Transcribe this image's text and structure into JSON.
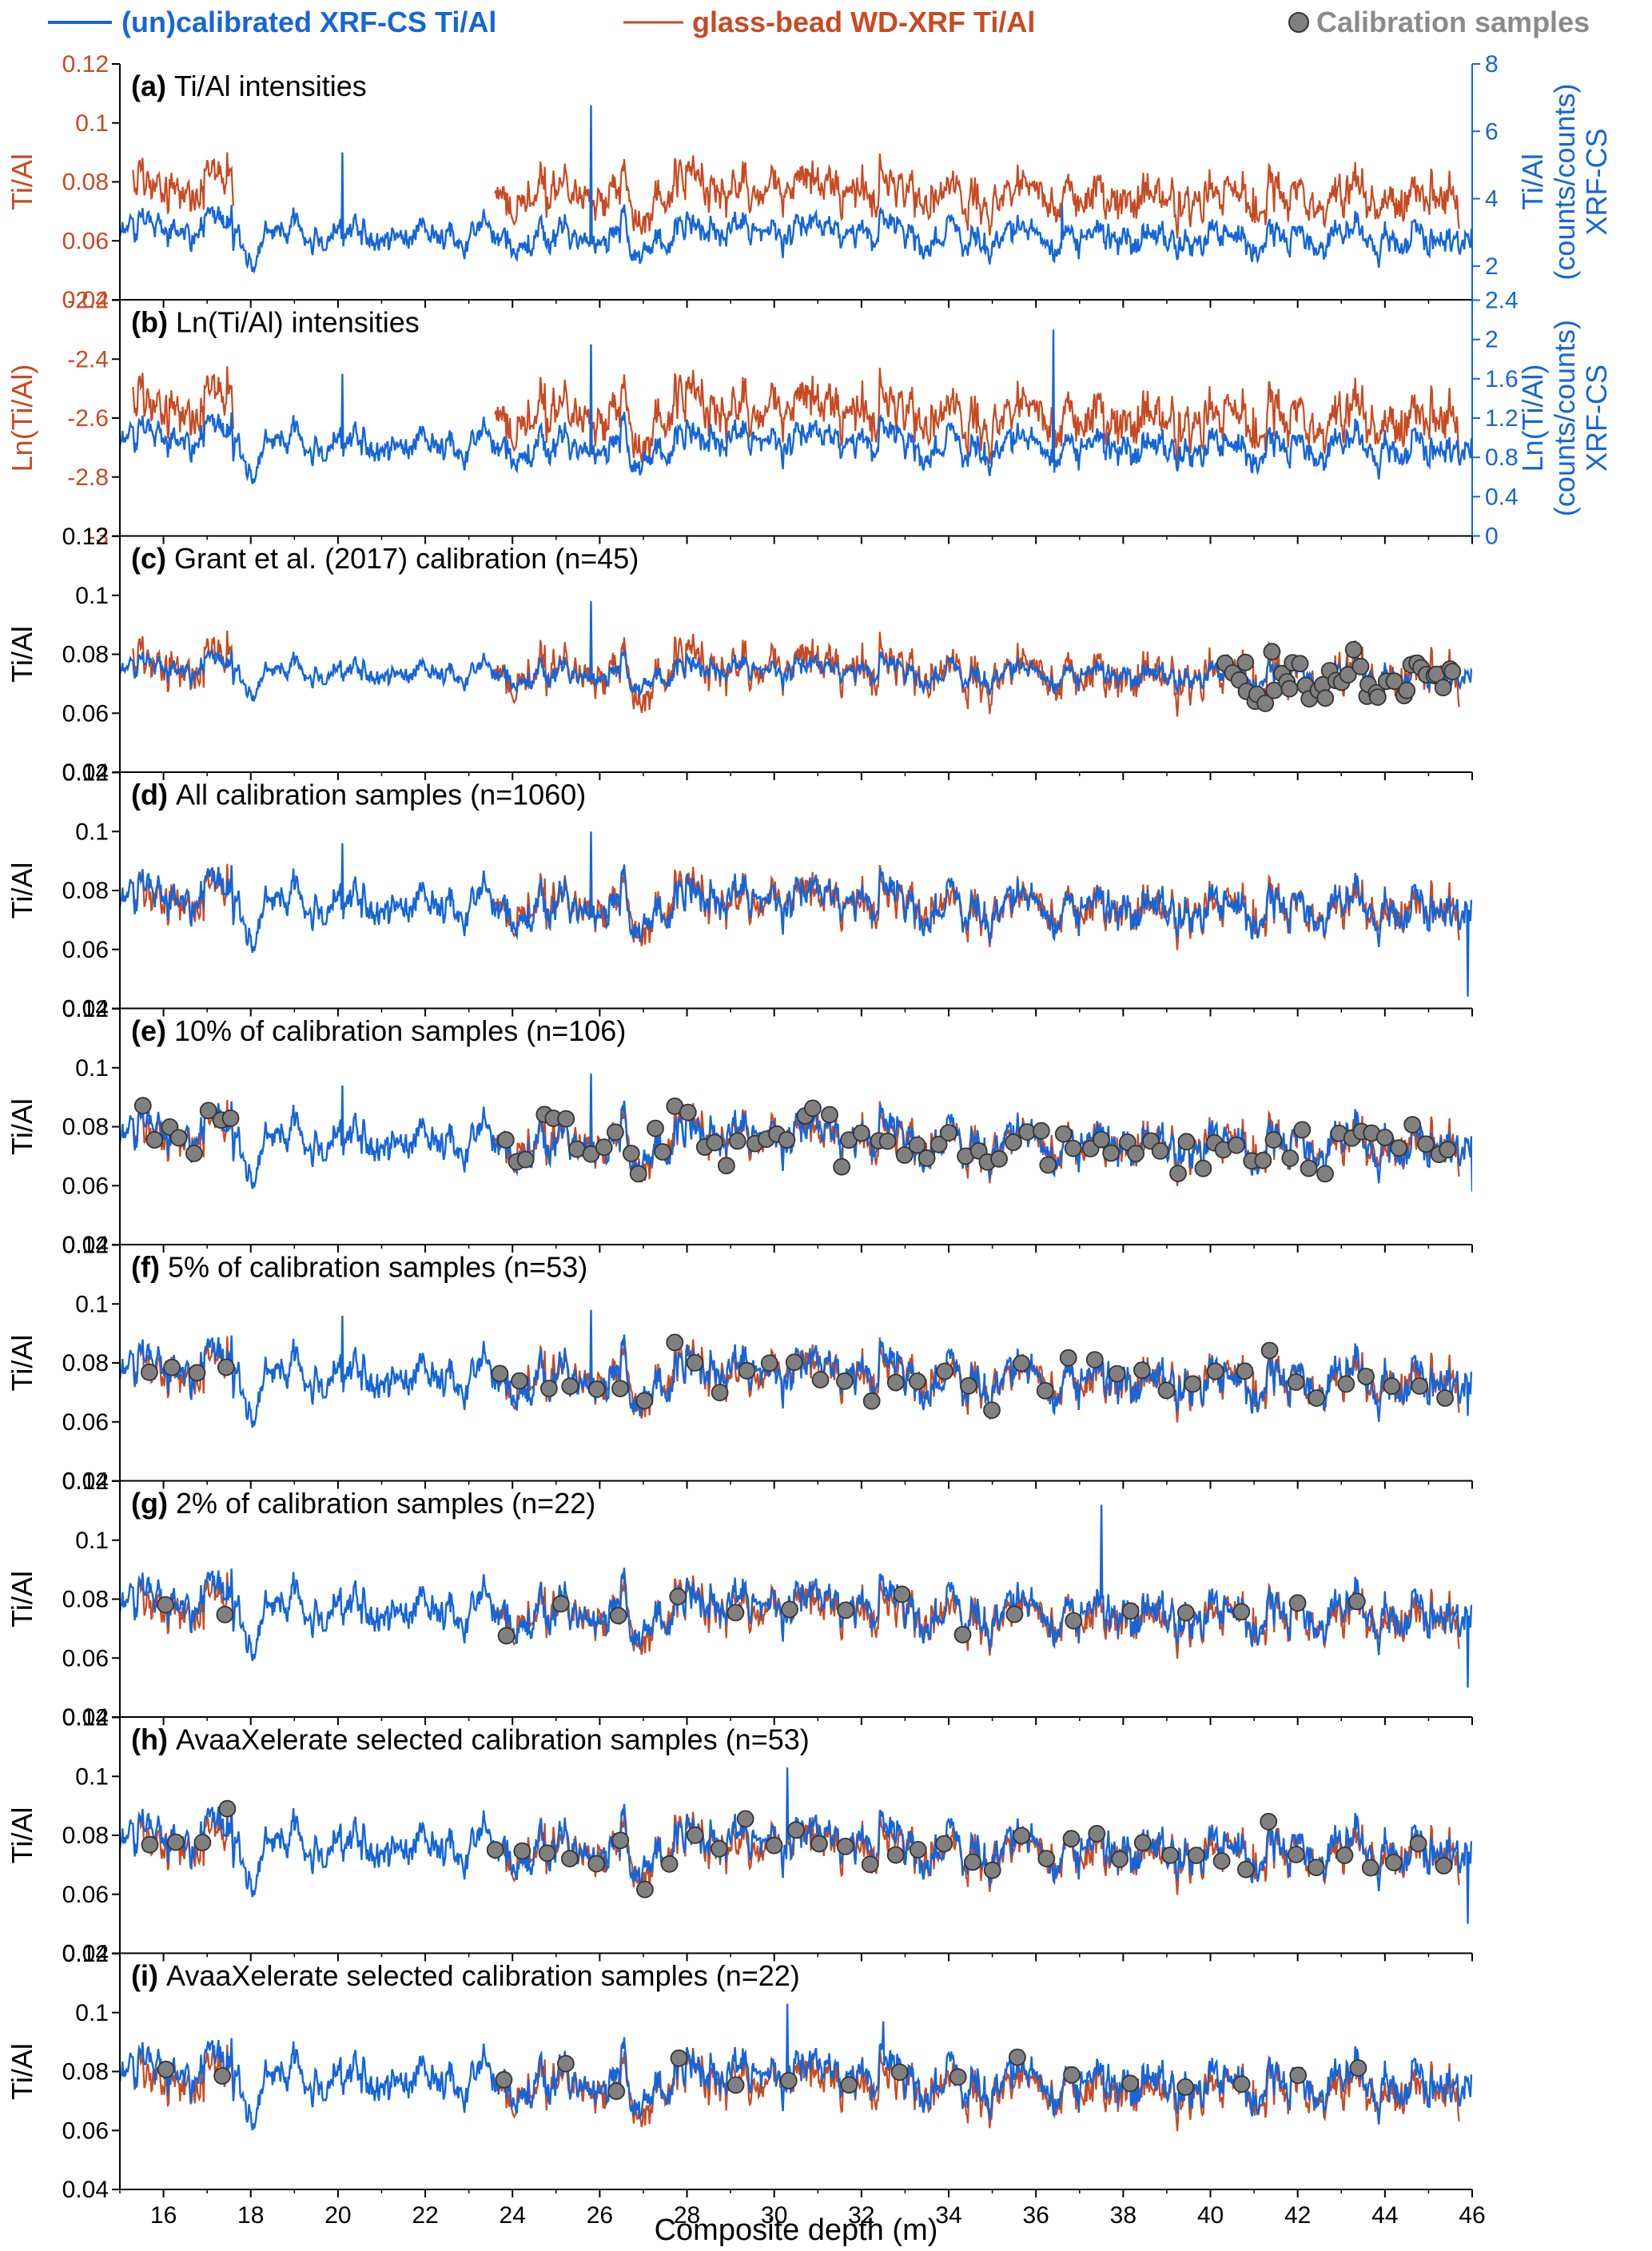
{
  "colors": {
    "xrf": "#1565d8",
    "wd": "#c84a22",
    "sample_fill": "#808080",
    "axis": "#000000"
  },
  "legend": {
    "xrf": "(un)calibrated XRF-CS Ti/Al",
    "wd": "glass-bead WD-XRF Ti/Al",
    "samples": "Calibration samples"
  },
  "xlabel": "Composite depth (m)",
  "chart_data": {
    "type": "line",
    "x_range": [
      15,
      46
    ],
    "x_ticks": [
      16,
      18,
      20,
      22,
      24,
      26,
      28,
      30,
      32,
      34,
      36,
      38,
      40,
      42,
      44,
      46
    ],
    "wd_glass_bead_intervals_m": [
      [
        15.3,
        17.6
      ],
      [
        23.6,
        45.7
      ]
    ],
    "panels": [
      {
        "id": "a",
        "label": "(a)",
        "title": "Ti/Al intensities",
        "ylabel": "Ti/Al",
        "ylim": [
          0.04,
          0.12
        ],
        "yticks": [
          0.04,
          0.06,
          0.08,
          0.1,
          0.12
        ],
        "ylabel_color": "wd",
        "y2label": [
          "Ti/Al",
          "(counts/counts)",
          "XRF-CS"
        ],
        "y2lim": [
          1,
          8
        ],
        "y2ticks": [
          2,
          4,
          6,
          8
        ],
        "xrf_mean": 0.061,
        "xrf_amp": 0.0042,
        "wd_mean": 0.075,
        "wd_amp": 0.006,
        "n_samples": 0,
        "spikes": [
          [
            20.1,
            0.09
          ],
          [
            25.8,
            0.106
          ],
          [
            36.6,
            0.072
          ]
        ]
      },
      {
        "id": "b",
        "label": "(b)",
        "title": "Ln(Ti/Al) intensities",
        "ylabel": "Ln(Ti/Al)",
        "ylim": [
          -3,
          -2.2
        ],
        "yticks": [
          -3,
          -2.8,
          -2.6,
          -2.4,
          -2.2
        ],
        "ylabel_color": "wd",
        "y2label": [
          "Ln(Ti/Al)",
          "(counts/counts)",
          "XRF-CS"
        ],
        "y2lim": [
          0,
          2.4
        ],
        "y2ticks": [
          0,
          0.4,
          0.8,
          1.2,
          1.6,
          2,
          2.4
        ],
        "xrf_mean": -2.7,
        "xrf_amp": 0.045,
        "wd_mean": -2.6,
        "wd_amp": 0.07,
        "n_samples": 0,
        "spikes": [
          [
            20.1,
            -2.45
          ],
          [
            25.8,
            -2.35
          ],
          [
            36.4,
            -2.3
          ]
        ]
      },
      {
        "id": "c",
        "label": "(c)",
        "title": "Grant et al. (2017) calibration (n=45)",
        "ylabel": "Ti/Al",
        "ylim": [
          0.04,
          0.12
        ],
        "yticks": [
          0.04,
          0.06,
          0.08,
          0.1,
          0.12
        ],
        "xrf_mean": 0.073,
        "xrf_amp": 0.0032,
        "wd_mean": 0.073,
        "wd_amp": 0.006,
        "n_samples": 45,
        "sample_range": [
          40.3,
          45.8
        ],
        "spikes": [
          [
            25.8,
            0.098
          ]
        ]
      },
      {
        "id": "d",
        "label": "(d)",
        "title": "All calibration samples (n=1060)",
        "ylabel": "Ti/Al",
        "ylim": [
          0.04,
          0.12
        ],
        "yticks": [
          0.04,
          0.06,
          0.08,
          0.1,
          0.12
        ],
        "xrf_mean": 0.074,
        "xrf_amp": 0.0055,
        "wd_mean": 0.074,
        "wd_amp": 0.006,
        "n_samples": 0,
        "spikes": [
          [
            20.1,
            0.096
          ],
          [
            25.8,
            0.1
          ],
          [
            45.9,
            0.044
          ]
        ]
      },
      {
        "id": "e",
        "label": "(e)",
        "title": "10% of calibration samples (n=106)",
        "ylabel": "Ti/Al",
        "ylim": [
          0.04,
          0.12
        ],
        "yticks": [
          0.04,
          0.06,
          0.08,
          0.1,
          0.12
        ],
        "xrf_mean": 0.074,
        "xrf_amp": 0.0055,
        "wd_mean": 0.074,
        "wd_amp": 0.006,
        "n_samples": 106,
        "sample_range": [
          15.4,
          45.6
        ],
        "spikes": [
          [
            20.1,
            0.094
          ],
          [
            25.8,
            0.098
          ],
          [
            46.0,
            0.058
          ]
        ]
      },
      {
        "id": "f",
        "label": "(f)",
        "title": "5% of calibration samples (n=53)",
        "ylabel": "Ti/Al",
        "ylim": [
          0.04,
          0.12
        ],
        "yticks": [
          0.04,
          0.06,
          0.08,
          0.1,
          0.12
        ],
        "xrf_mean": 0.074,
        "xrf_amp": 0.0058,
        "wd_mean": 0.074,
        "wd_amp": 0.006,
        "n_samples": 53,
        "sample_range": [
          15.4,
          45.6
        ],
        "spikes": [
          [
            20.1,
            0.096
          ],
          [
            25.8,
            0.098
          ],
          [
            45.9,
            0.062
          ]
        ]
      },
      {
        "id": "g",
        "label": "(g)",
        "title": "2% of calibration samples (n=22)",
        "ylabel": "Ti/Al",
        "ylim": [
          0.04,
          0.12
        ],
        "yticks": [
          0.04,
          0.06,
          0.08,
          0.1,
          0.12
        ],
        "xrf_mean": 0.075,
        "xrf_amp": 0.0058,
        "wd_mean": 0.074,
        "wd_amp": 0.006,
        "n_samples": 22,
        "sample_range": [
          15.4,
          44.0
        ],
        "spikes": [
          [
            37.5,
            0.112
          ],
          [
            45.9,
            0.05
          ]
        ]
      },
      {
        "id": "h",
        "label": "(h)",
        "title": "AvaaXelerate selected calibration samples (n=53)",
        "ylabel": "Ti/Al",
        "ylim": [
          0.04,
          0.12
        ],
        "yticks": [
          0.04,
          0.06,
          0.08,
          0.1,
          0.12
        ],
        "xrf_mean": 0.075,
        "xrf_amp": 0.0058,
        "wd_mean": 0.074,
        "wd_amp": 0.006,
        "n_samples": 53,
        "sample_range": [
          15.4,
          45.6
        ],
        "spikes": [
          [
            30.3,
            0.103
          ],
          [
            45.9,
            0.05
          ]
        ]
      },
      {
        "id": "i",
        "label": "(i)",
        "title": "AvaaXelerate selected calibration samples (n=22)",
        "ylabel": "Ti/Al",
        "ylim": [
          0.04,
          0.12
        ],
        "yticks": [
          0.04,
          0.06,
          0.08,
          0.1,
          0.12
        ],
        "xrf_mean": 0.076,
        "xrf_amp": 0.0058,
        "wd_mean": 0.074,
        "wd_amp": 0.006,
        "n_samples": 22,
        "sample_range": [
          15.4,
          44.0
        ],
        "spikes": [
          [
            30.3,
            0.103
          ],
          [
            32.5,
            0.097
          ]
        ]
      }
    ]
  }
}
